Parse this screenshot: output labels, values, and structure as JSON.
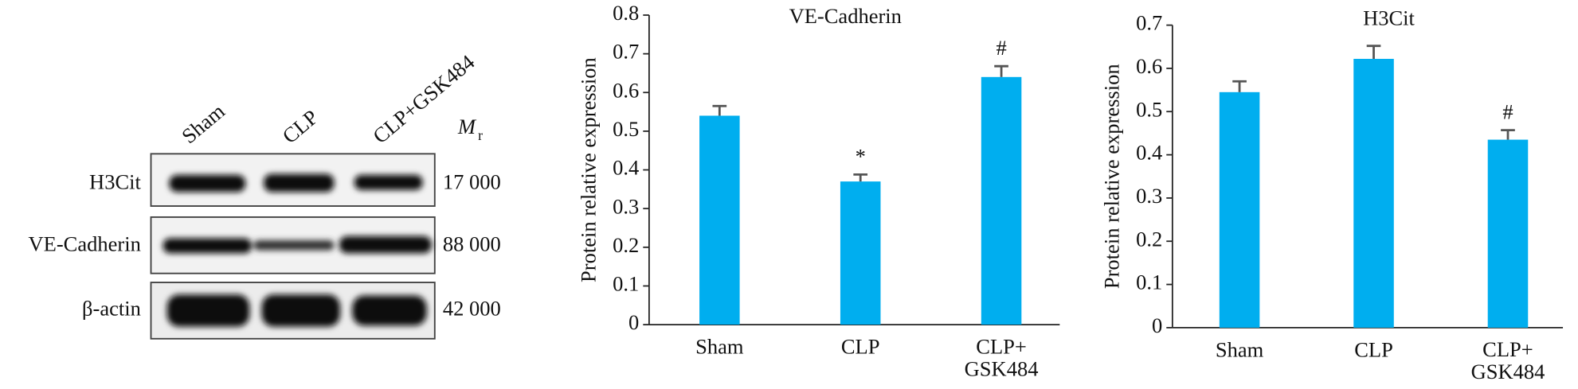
{
  "blot": {
    "lanes": [
      "Sham",
      "CLP",
      "CLP+GSK484"
    ],
    "mr_label": "M",
    "mr_sub": "r",
    "rows": [
      {
        "label": "H3Cit",
        "mr": "17 000"
      },
      {
        "label": "VE-Cadherin",
        "mr": "88 000"
      },
      {
        "label": "β-actin",
        "mr": "42 000"
      }
    ]
  },
  "chart_data": [
    {
      "type": "bar",
      "title": "VE-Cadherin",
      "y_label": "Protein relative expression",
      "categories": [
        "Sham",
        "CLP",
        "CLP+\nGSK484"
      ],
      "values": [
        0.54,
        0.37,
        0.64
      ],
      "errors": [
        0.025,
        0.018,
        0.028
      ],
      "annotations": [
        null,
        "*",
        "#"
      ],
      "color": "#00aeef",
      "ylim": [
        0,
        0.8
      ],
      "yticks": [
        0,
        0.1,
        0.2,
        0.3,
        0.4,
        0.5,
        0.6,
        0.7,
        0.8
      ]
    },
    {
      "type": "bar",
      "title": "H3Cit",
      "y_label": "Protein relative expression",
      "categories": [
        "Sham",
        "CLP",
        "CLP+\nGSK484"
      ],
      "values": [
        0.545,
        0.622,
        0.435
      ],
      "errors": [
        0.025,
        0.03,
        0.022
      ],
      "annotations": [
        null,
        null,
        "#"
      ],
      "color": "#00aeef",
      "ylim": [
        0,
        0.7
      ],
      "yticks": [
        0,
        0.1,
        0.2,
        0.3,
        0.4,
        0.5,
        0.6,
        0.7
      ]
    }
  ]
}
